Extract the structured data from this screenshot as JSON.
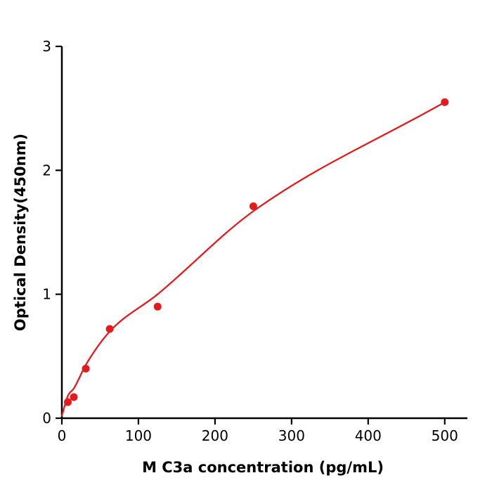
{
  "figure": {
    "background": "#ffffff"
  },
  "chart_data": {
    "type": "scatter",
    "title": "",
    "xlabel": "M  C3a concentration (pg/mL)",
    "ylabel": "Optical Density(450nm)",
    "x": [
      7.8,
      15.6,
      31.25,
      62.5,
      125,
      250,
      500
    ],
    "y": [
      0.13,
      0.17,
      0.4,
      0.72,
      0.9,
      1.71,
      2.55
    ],
    "xlim": [
      0,
      525
    ],
    "ylim": [
      0,
      3
    ],
    "xticks": [
      0,
      100,
      200,
      300,
      400,
      500
    ],
    "yticks": [
      0,
      1,
      2,
      3
    ],
    "grid": false,
    "legend": false,
    "marker_color": "#e41a1c",
    "line_color": "#e41a1c",
    "axis_color": "#000000",
    "fit_curve": [
      [
        0,
        0.02
      ],
      [
        7.8,
        0.18
      ],
      [
        15.6,
        0.24
      ],
      [
        31.25,
        0.43
      ],
      [
        62.5,
        0.7
      ],
      [
        125,
        1.0
      ],
      [
        250,
        1.67
      ],
      [
        500,
        2.55
      ]
    ]
  }
}
